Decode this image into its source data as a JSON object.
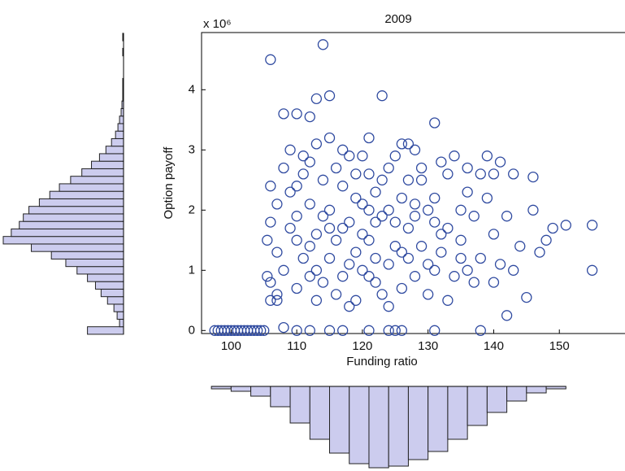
{
  "chart_data": [
    {
      "type": "scatter",
      "title": "2009",
      "x_label": "Funding ratio",
      "y_label": "Option payoff",
      "y_exponent": "x 10⁶",
      "xlim": [
        95.5,
        160
      ],
      "ylim": [
        -0.05,
        4.95
      ],
      "xticks": [
        100,
        110,
        120,
        130,
        140,
        150
      ],
      "yticks": [
        0,
        1,
        2,
        3,
        4
      ],
      "color": "#2f4aa0",
      "x": [
        97.5,
        98,
        98.5,
        99,
        99.5,
        100,
        100.5,
        101,
        101.5,
        102,
        102.5,
        103,
        103.5,
        104,
        104.5,
        105,
        110,
        112,
        115,
        117,
        121,
        124,
        125,
        126,
        131,
        138,
        106,
        114,
        123,
        113,
        115,
        110,
        112,
        108,
        131,
        127,
        139,
        141,
        140,
        143,
        146,
        149,
        151,
        155,
        155,
        147,
        145,
        142,
        108,
        106,
        107,
        110,
        112,
        115,
        118,
        120,
        122,
        125,
        128,
        130,
        133,
        108,
        111,
        114,
        117,
        119,
        121,
        124,
        127,
        131,
        135,
        106,
        109,
        113,
        116,
        118,
        123,
        126,
        129,
        134,
        137,
        107,
        110,
        112,
        115,
        119,
        121,
        124,
        128,
        132,
        136,
        105.5,
        109,
        113,
        116,
        120,
        122,
        126,
        130,
        133,
        138,
        106,
        111,
        114,
        117,
        120,
        123,
        127,
        131,
        135,
        140,
        108,
        110,
        115,
        118,
        121,
        125,
        128,
        132,
        137,
        142,
        107,
        112,
        116,
        119,
        122,
        124,
        129,
        134,
        139,
        144,
        109,
        113,
        117,
        120,
        123,
        126,
        130,
        136,
        141,
        146,
        105.5,
        111,
        114,
        118,
        121,
        125,
        129,
        133,
        138,
        148,
        106,
        110,
        113,
        117,
        122,
        124,
        127,
        131,
        136,
        143,
        107,
        112,
        115,
        119,
        121,
        126,
        128,
        132,
        135,
        140
      ],
      "values": [
        0,
        0,
        0,
        0,
        0,
        0,
        0,
        0,
        0,
        0,
        0,
        0,
        0,
        0,
        0,
        0,
        0,
        0,
        0,
        0,
        0,
        0,
        0,
        0,
        0,
        0,
        4.5,
        4.75,
        3.9,
        3.85,
        3.9,
        3.6,
        3.55,
        3.6,
        3.45,
        3.1,
        2.9,
        2.8,
        2.6,
        2.6,
        2.55,
        1.7,
        1.75,
        1.75,
        1.0,
        1.3,
        0.55,
        0.25,
        0.05,
        0.8,
        0.5,
        1.5,
        2.1,
        1.2,
        1.8,
        1.6,
        2.3,
        1.4,
        1.9,
        1.1,
        1.7,
        1.0,
        2.6,
        0.8,
        2.4,
        1.3,
        0.9,
        2.7,
        1.2,
        2.2,
        1.5,
        1.8,
        2.3,
        1.6,
        0.6,
        2.9,
        1.9,
        0.7,
        2.5,
        0.9,
        1.9,
        1.3,
        0.7,
        2.8,
        2.0,
        0.5,
        2.6,
        1.1,
        3.0,
        1.3,
        2.3,
        0.9,
        1.7,
        3.1,
        1.5,
        2.1,
        1.2,
        2.2,
        0.6,
        2.6,
        1.2,
        2.4,
        1.2,
        2.5,
        0.9,
        2.9,
        0.6,
        1.7,
        1.8,
        2.0,
        1.6,
        2.7,
        1.9,
        3.2,
        1.1,
        1.5,
        2.9,
        0.9,
        2.8,
        0.8,
        1.9,
        0.6,
        1.4,
        2.7,
        2.2,
        1.8,
        0.4,
        1.4,
        2.9,
        2.2,
        1.4,
        3.0,
        0.5,
        1.7,
        1.0,
        2.5,
        3.1,
        2.0,
        1.0,
        1.1,
        2.0,
        1.5,
        2.9,
        1.9,
        0.4,
        3.2,
        1.8,
        2.7,
        0.5,
        2.6,
        1.5,
        0.5,
        2.4,
        1.0,
        3.0,
        0.8,
        2.0,
        2.5,
        1.0,
        2.7,
        1.0,
        2.1,
        0.9,
        1.7,
        2.6,
        2.0,
        1.3,
        2.1,
        1.6,
        1.2,
        0.8
      ]
    },
    {
      "type": "histogram",
      "orientation": "horizontal",
      "color": "#ccccee",
      "bins": [
        -0.0625,
        0.0625,
        0.1875,
        0.3125,
        0.4375,
        0.5625,
        0.6875,
        0.8125,
        0.9375,
        1.0625,
        1.1875,
        1.3125,
        1.4375,
        1.5625,
        1.6875,
        1.8125,
        1.9375,
        2.0625,
        2.1875,
        2.3125,
        2.4375,
        2.5625,
        2.6875,
        2.8125,
        2.9375,
        3.0625,
        3.1875,
        3.3125,
        3.4375,
        3.5625,
        3.6875,
        3.8125,
        3.9375,
        4.0625,
        4.1875,
        4.3125,
        4.4375,
        4.5625,
        4.6875,
        4.8125,
        4.9375
      ],
      "values": [
        45,
        5,
        8,
        12,
        20,
        28,
        35,
        45,
        58,
        72,
        90,
        115,
        150,
        140,
        130,
        125,
        118,
        105,
        92,
        80,
        66,
        52,
        40,
        30,
        22,
        15,
        10,
        7,
        5,
        3,
        2,
        1,
        1,
        1,
        0,
        0,
        0,
        1,
        0,
        1
      ]
    },
    {
      "type": "histogram",
      "orientation": "vertical",
      "color": "#ccccee",
      "bins": [
        97,
        100,
        103,
        106,
        109,
        112,
        115,
        118,
        121,
        124,
        127,
        130,
        133,
        136,
        139,
        142,
        145,
        148,
        151
      ],
      "values": [
        3,
        6,
        12,
        25,
        45,
        65,
        82,
        95,
        100,
        98,
        90,
        80,
        65,
        48,
        32,
        18,
        8,
        3
      ]
    }
  ]
}
